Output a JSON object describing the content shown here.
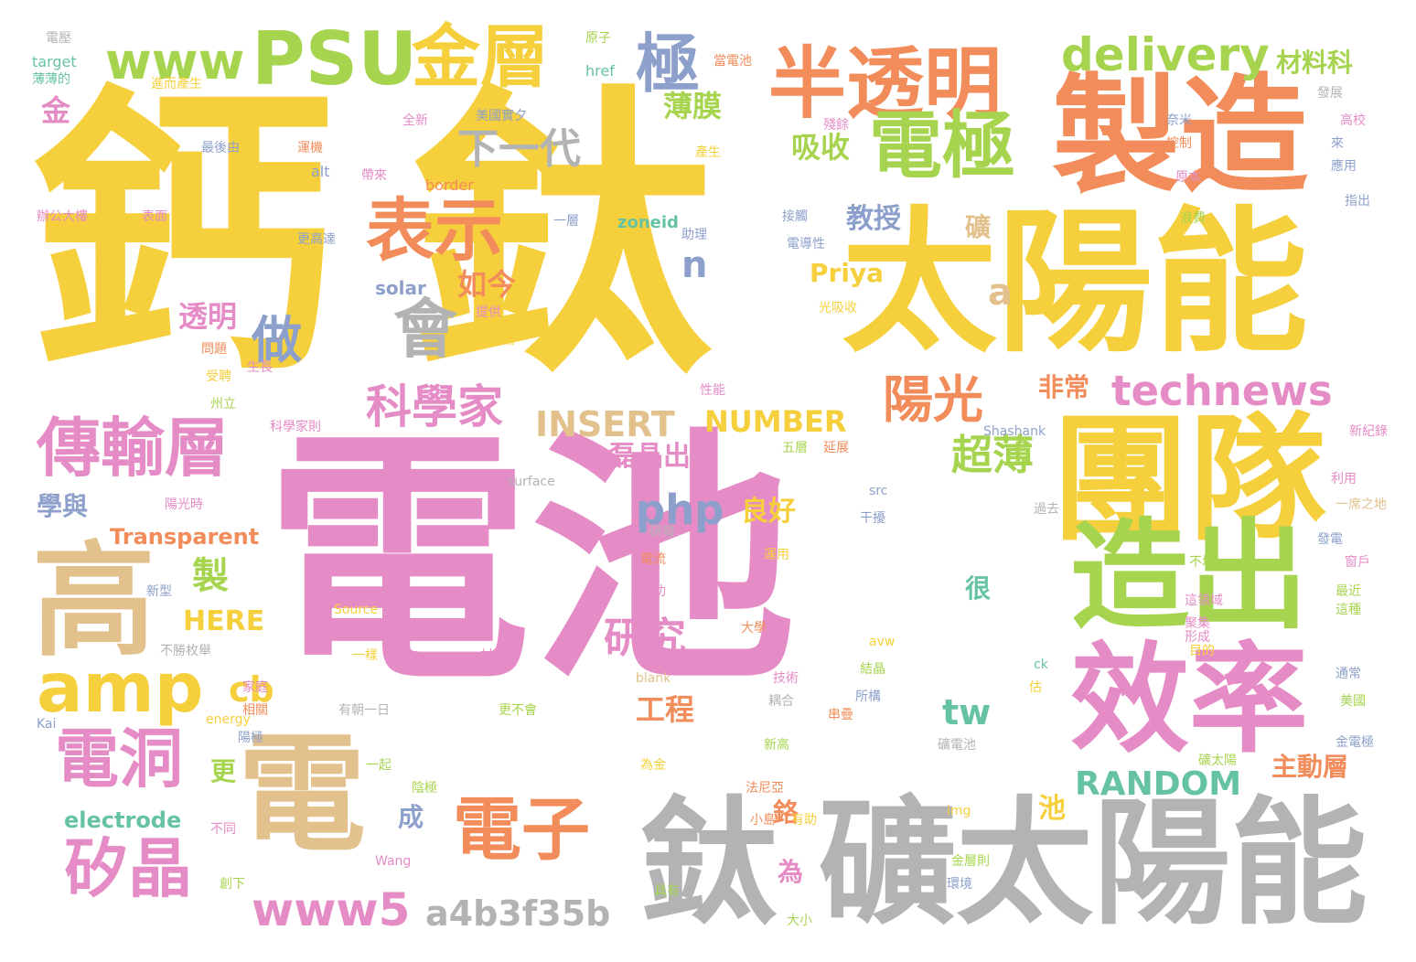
{
  "palette": {
    "yellow": "#F5D03C",
    "pink": "#E58CC6",
    "orange": "#F28C5A",
    "green": "#A7D44F",
    "gray": "#B3B3B3",
    "tan": "#E2C18C",
    "blue": "#8DA0CB",
    "teal": "#66C2A5"
  },
  "words": [
    {
      "text": "鈣",
      "color": "yellow"
    },
    {
      "text": "鈦",
      "color": "yellow"
    },
    {
      "text": "電池",
      "color": "pink"
    },
    {
      "text": "太陽能",
      "color": "yellow"
    },
    {
      "text": "製造",
      "color": "orange"
    },
    {
      "text": "團隊",
      "color": "yellow"
    },
    {
      "text": "礦太陽能",
      "color": "gray"
    },
    {
      "text": "鈦",
      "color": "gray"
    },
    {
      "text": "效率",
      "color": "pink"
    },
    {
      "text": "造出",
      "color": "green"
    },
    {
      "text": "電",
      "color": "tan"
    },
    {
      "text": "高",
      "color": "tan"
    },
    {
      "text": "半透明",
      "color": "orange"
    },
    {
      "text": "PSU",
      "color": "green"
    },
    {
      "text": "金層",
      "color": "yellow"
    },
    {
      "text": "www",
      "color": "green"
    },
    {
      "text": "極",
      "color": "blue"
    },
    {
      "text": "電極",
      "color": "green"
    },
    {
      "text": "表示",
      "color": "orange"
    },
    {
      "text": "會",
      "color": "gray"
    },
    {
      "text": "做",
      "color": "blue"
    },
    {
      "text": "傳輸層",
      "color": "pink"
    },
    {
      "text": "amp",
      "color": "yellow"
    },
    {
      "text": "電洞",
      "color": "pink"
    },
    {
      "text": "矽晶",
      "color": "pink"
    },
    {
      "text": "電子",
      "color": "orange"
    },
    {
      "text": "www5",
      "color": "pink"
    },
    {
      "text": "a4b3f35b",
      "color": "gray"
    },
    {
      "text": "delivery",
      "color": "green"
    },
    {
      "text": "technews",
      "color": "pink"
    },
    {
      "text": "下一代",
      "color": "gray"
    },
    {
      "text": "科學家",
      "color": "pink"
    },
    {
      "text": "陽光",
      "color": "orange"
    },
    {
      "text": "INSERT",
      "color": "tan"
    },
    {
      "text": "NUMBER",
      "color": "yellow"
    },
    {
      "text": "php",
      "color": "blue"
    },
    {
      "text": "研究",
      "color": "pink"
    },
    {
      "text": "tw",
      "color": "teal"
    },
    {
      "text": "RANDOM",
      "color": "teal"
    },
    {
      "text": "主動層",
      "color": "orange"
    },
    {
      "text": "材料科",
      "color": "green"
    },
    {
      "text": "吸收",
      "color": "green"
    },
    {
      "text": "薄膜",
      "color": "green"
    },
    {
      "text": "教授",
      "color": "blue"
    },
    {
      "text": "Priya",
      "color": "yellow"
    },
    {
      "text": "如今",
      "color": "orange"
    },
    {
      "text": "透明",
      "color": "pink"
    },
    {
      "text": "非常",
      "color": "orange"
    },
    {
      "text": "超薄",
      "color": "green"
    },
    {
      "text": "n",
      "color": "blue"
    },
    {
      "text": "a",
      "color": "tan"
    },
    {
      "text": "cb",
      "color": "yellow"
    },
    {
      "text": "製",
      "color": "green"
    },
    {
      "text": "HERE",
      "color": "yellow"
    },
    {
      "text": "Transparent",
      "color": "orange"
    },
    {
      "text": "學與",
      "color": "blue"
    },
    {
      "text": "磊晶出",
      "color": "pink"
    },
    {
      "text": "良好",
      "color": "yellow"
    },
    {
      "text": "工程",
      "color": "orange"
    },
    {
      "text": "更",
      "color": "green"
    },
    {
      "text": "成",
      "color": "blue"
    },
    {
      "text": "鉻",
      "color": "orange"
    },
    {
      "text": "為",
      "color": "pink"
    },
    {
      "text": "很",
      "color": "teal"
    },
    {
      "text": "池",
      "color": "yellow"
    },
    {
      "text": "礦",
      "color": "tan"
    },
    {
      "text": "electrode",
      "color": "teal"
    },
    {
      "text": "solar",
      "color": "blue"
    },
    {
      "text": "zoneid",
      "color": "teal"
    },
    {
      "text": "border",
      "color": "orange"
    },
    {
      "text": "alt",
      "color": "blue"
    },
    {
      "text": "href",
      "color": "teal"
    },
    {
      "text": "target",
      "color": "teal"
    },
    {
      "text": "電壓",
      "color": "gray"
    },
    {
      "text": "薄薄的",
      "color": "teal"
    },
    {
      "text": "金",
      "color": "pink"
    },
    {
      "text": "原子",
      "color": "green"
    },
    {
      "text": "當電池",
      "color": "orange"
    },
    {
      "text": "進而產生",
      "color": "yellow"
    },
    {
      "text": "全新",
      "color": "pink"
    },
    {
      "text": "美國實夕",
      "color": "blue"
    },
    {
      "text": "最後由",
      "color": "blue"
    },
    {
      "text": "運機",
      "color": "orange"
    },
    {
      "text": "帶來",
      "color": "pink"
    },
    {
      "text": "產生",
      "color": "yellow"
    },
    {
      "text": "辦公大樓",
      "color": "pink"
    },
    {
      "text": "表面",
      "color": "pink"
    },
    {
      "text": "更高達",
      "color": "blue"
    },
    {
      "text": "接觸",
      "color": "blue"
    },
    {
      "text": "電導性",
      "color": "blue"
    },
    {
      "text": "助理",
      "color": "blue"
    },
    {
      "text": "光吸收",
      "color": "yellow"
    },
    {
      "text": "一層",
      "color": "blue"
    },
    {
      "text": "提供",
      "color": "pink"
    },
    {
      "text": "為備",
      "color": "yellow"
    },
    {
      "text": "問題",
      "color": "orange"
    },
    {
      "text": "受聘",
      "color": "yellow"
    },
    {
      "text": "州立",
      "color": "green"
    },
    {
      "text": "生長",
      "color": "pink"
    },
    {
      "text": "科學家則",
      "color": "pink"
    },
    {
      "text": "性能",
      "color": "pink"
    },
    {
      "text": "五層",
      "color": "green"
    },
    {
      "text": "延展",
      "color": "orange"
    },
    {
      "text": "surface",
      "color": "gray"
    },
    {
      "text": "陽光時",
      "color": "pink"
    },
    {
      "text": "Shashank",
      "color": "blue"
    },
    {
      "text": "src",
      "color": "blue"
    },
    {
      "text": "干擾",
      "color": "blue"
    },
    {
      "text": "過去",
      "color": "gray"
    },
    {
      "text": "研發",
      "color": "gray"
    },
    {
      "text": "電流",
      "color": "orange"
    },
    {
      "text": "運用",
      "color": "yellow"
    },
    {
      "text": "成功",
      "color": "pink"
    },
    {
      "text": "新型",
      "color": "blue"
    },
    {
      "text": "Source",
      "color": "yellow"
    },
    {
      "text": "大學",
      "color": "orange"
    },
    {
      "text": "不勝枚舉",
      "color": "gray"
    },
    {
      "text": "一樣",
      "color": "yellow"
    },
    {
      "text": "材料",
      "color": "pink"
    },
    {
      "text": "blank",
      "color": "tan"
    },
    {
      "text": "技術",
      "color": "pink"
    },
    {
      "text": "結晶",
      "color": "green"
    },
    {
      "text": "所構",
      "color": "blue"
    },
    {
      "text": "有朝一日",
      "color": "gray"
    },
    {
      "text": "更不會",
      "color": "green"
    },
    {
      "text": "相關",
      "color": "orange"
    },
    {
      "text": "家庭",
      "color": "pink"
    },
    {
      "text": "陽極",
      "color": "blue"
    },
    {
      "text": "Kai",
      "color": "blue"
    },
    {
      "text": "energy",
      "color": "yellow"
    },
    {
      "text": "串疊",
      "color": "orange"
    },
    {
      "text": "礦電池",
      "color": "gray"
    },
    {
      "text": "新高",
      "color": "green"
    },
    {
      "text": "法尼亞",
      "color": "orange"
    },
    {
      "text": "陰極",
      "color": "green"
    },
    {
      "text": "一起",
      "color": "green"
    },
    {
      "text": "為金",
      "color": "yellow"
    },
    {
      "text": "不同",
      "color": "pink"
    },
    {
      "text": "img",
      "color": "yellow"
    },
    {
      "text": "小島",
      "color": "orange"
    },
    {
      "text": "有助",
      "color": "yellow"
    },
    {
      "text": "Wang",
      "color": "pink"
    },
    {
      "text": "金層則",
      "color": "green"
    },
    {
      "text": "具有",
      "color": "green"
    },
    {
      "text": "環境",
      "color": "blue"
    },
    {
      "text": "創下",
      "color": "green"
    },
    {
      "text": "大小",
      "color": "green"
    },
    {
      "text": "金電極",
      "color": "blue"
    },
    {
      "text": "美國",
      "color": "green"
    },
    {
      "text": "通常",
      "color": "blue"
    },
    {
      "text": "礦太陽",
      "color": "green"
    },
    {
      "text": "目的",
      "color": "yellow"
    },
    {
      "text": "形成",
      "color": "pink"
    },
    {
      "text": "聚集",
      "color": "pink"
    },
    {
      "text": "這領域",
      "color": "pink"
    },
    {
      "text": "這種",
      "color": "green"
    },
    {
      "text": "最近",
      "color": "green"
    },
    {
      "text": "窗戶",
      "color": "pink"
    },
    {
      "text": "不均",
      "color": "green"
    },
    {
      "text": "發電",
      "color": "blue"
    },
    {
      "text": "一席之地",
      "color": "tan"
    },
    {
      "text": "利用",
      "color": "pink"
    },
    {
      "text": "新紀錄",
      "color": "pink"
    },
    {
      "text": "來",
      "color": "blue"
    },
    {
      "text": "應用",
      "color": "blue"
    },
    {
      "text": "指出",
      "color": "blue"
    },
    {
      "text": "高校",
      "color": "pink"
    },
    {
      "text": "奈米",
      "color": "blue"
    },
    {
      "text": "控制",
      "color": "orange"
    },
    {
      "text": "原本",
      "color": "pink"
    },
    {
      "text": "浪費",
      "color": "green"
    },
    {
      "text": "殘餘",
      "color": "pink"
    },
    {
      "text": "發展",
      "color": "gray"
    },
    {
      "text": "avw",
      "color": "yellow"
    },
    {
      "text": "ck",
      "color": "teal"
    },
    {
      "text": "估",
      "color": "yellow"
    },
    {
      "text": "耦合",
      "color": "gray"
    },
    {
      "text": "存有",
      "color": "orange"
    }
  ]
}
